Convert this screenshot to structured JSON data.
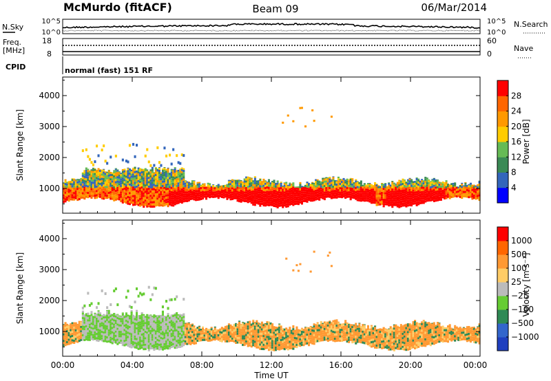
{
  "header": {
    "station": "McMurdo (fitACF)",
    "beam": "Beam 09",
    "date": "06/Mar/2014"
  },
  "status_panels": {
    "nsky_label": "N.Sky",
    "nsky_ticks": [
      "10^5",
      "10^0"
    ],
    "nsearch_label": "N.Search",
    "nsearch_ticks": [
      "10^5",
      "10^0"
    ],
    "freq_label": "Freq.",
    "freq_unit": "[MHz]",
    "freq_ticks": [
      "18",
      "8"
    ],
    "nave_label": "Nave",
    "nave_ticks": [
      "60",
      "0"
    ],
    "cpid_label": "CPID",
    "cpid_value": "normal (fast) 151 RF"
  },
  "chart_data": [
    {
      "type": "heatmap",
      "name": "power",
      "ylabel": "Slant Range [km]",
      "ylim": [
        200,
        4600
      ],
      "yticks": [
        1000,
        2000,
        3000,
        4000
      ],
      "xlim": [
        0,
        24
      ],
      "xticks": [
        0,
        4,
        8,
        12,
        16,
        20,
        24
      ],
      "colorbar": {
        "label": "Power [dB]",
        "range": [
          0,
          32
        ],
        "ticks": [
          "4",
          "8",
          "12",
          "16",
          "20",
          "24",
          "28"
        ],
        "colors": [
          "#0000ff",
          "#3366bb",
          "#3a8a55",
          "#66bb55",
          "#ffcc00",
          "#ff9900",
          "#ff6600",
          "#ff0000"
        ]
      }
    },
    {
      "type": "heatmap",
      "name": "velocity",
      "ylabel": "Slant Range [km]",
      "ylim": [
        200,
        4600
      ],
      "yticks": [
        1000,
        2000,
        3000,
        4000
      ],
      "xlim": [
        0,
        24
      ],
      "xticks": [
        0,
        4,
        8,
        12,
        16,
        20,
        24
      ],
      "colorbar": {
        "label": "Velocity [m s⁻¹]",
        "ticks": [
          "1000",
          "500",
          "100",
          "25",
          "−25",
          "−100",
          "−500",
          "−1000"
        ],
        "colors": [
          "#1f3fbf",
          "#3366cc",
          "#2f8a55",
          "#66cc33",
          "#bbbbbb",
          "#ffcc66",
          "#ff9933",
          "#ff6600",
          "#ff0000"
        ]
      }
    }
  ],
  "xaxis": {
    "labels": [
      "00:00",
      "04:00",
      "08:00",
      "12:00",
      "16:00",
      "20:00",
      "00:00"
    ],
    "title": "Time UT"
  }
}
